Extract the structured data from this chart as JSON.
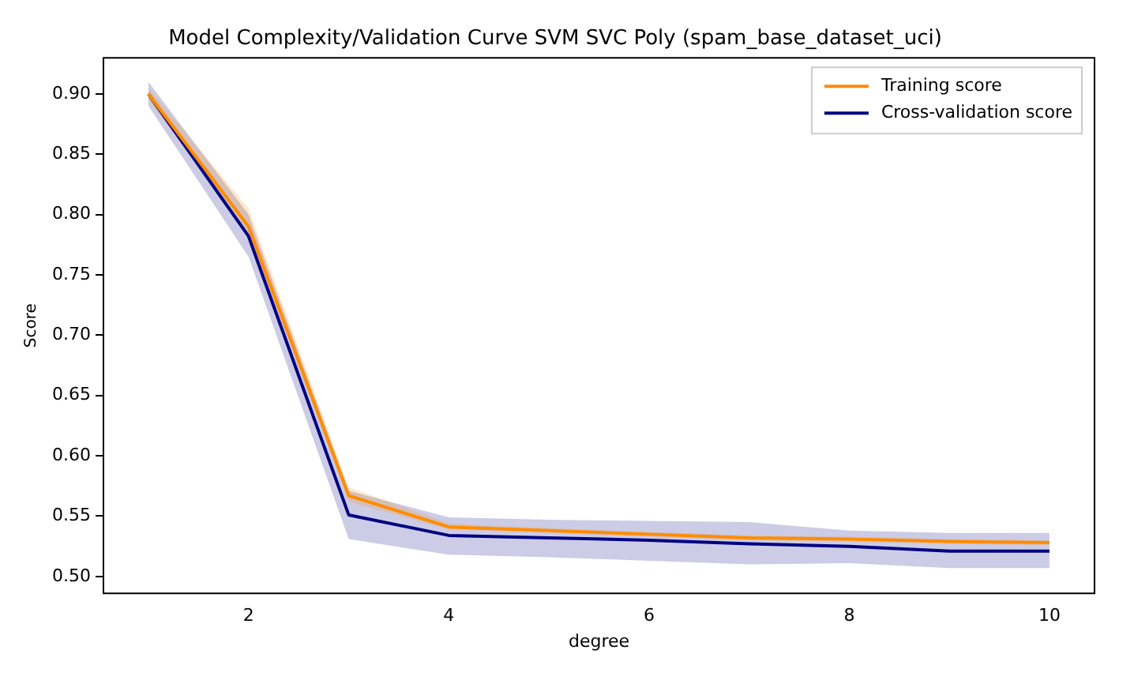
{
  "chart_data": {
    "type": "line",
    "title": "Model Complexity/Validation Curve SVM SVC Poly (spam_base_dataset_uci)",
    "xlabel": "degree",
    "ylabel": "Score",
    "x": [
      1,
      2,
      3,
      4,
      5,
      6,
      7,
      8,
      9,
      10
    ],
    "series": [
      {
        "name": "Training score",
        "color": "#ff8c00",
        "values": [
          0.9,
          0.79,
          0.567,
          0.541,
          0.538,
          0.535,
          0.532,
          0.531,
          0.529,
          0.528
        ],
        "lower": [
          0.895,
          0.785,
          0.562,
          0.539,
          0.536,
          0.533,
          0.53,
          0.529,
          0.527,
          0.526
        ],
        "upper": [
          0.905,
          0.805,
          0.574,
          0.544,
          0.54,
          0.537,
          0.534,
          0.533,
          0.531,
          0.53
        ]
      },
      {
        "name": "Cross-validation score",
        "color": "#000080",
        "values": [
          0.9,
          0.782,
          0.551,
          0.534,
          0.532,
          0.53,
          0.527,
          0.525,
          0.521,
          0.521
        ],
        "lower": [
          0.89,
          0.765,
          0.531,
          0.518,
          0.516,
          0.513,
          0.51,
          0.511,
          0.507,
          0.507
        ],
        "upper": [
          0.91,
          0.8,
          0.571,
          0.549,
          0.547,
          0.546,
          0.545,
          0.538,
          0.536,
          0.536
        ]
      }
    ],
    "xlim": [
      0.55,
      10.45
    ],
    "ylim": [
      0.486,
      0.93
    ],
    "xticks": [
      2,
      4,
      6,
      8,
      10
    ],
    "yticks": [
      {
        "value": 0.5,
        "label": "0.50"
      },
      {
        "value": 0.55,
        "label": "0.55"
      },
      {
        "value": 0.6,
        "label": "0.60"
      },
      {
        "value": 0.65,
        "label": "0.65"
      },
      {
        "value": 0.7,
        "label": "0.70"
      },
      {
        "value": 0.75,
        "label": "0.75"
      },
      {
        "value": 0.8,
        "label": "0.80"
      },
      {
        "value": 0.85,
        "label": "0.85"
      },
      {
        "value": 0.9,
        "label": "0.90"
      }
    ],
    "grid": false,
    "legend": "top right",
    "marker": "none",
    "line_style": "solid"
  }
}
